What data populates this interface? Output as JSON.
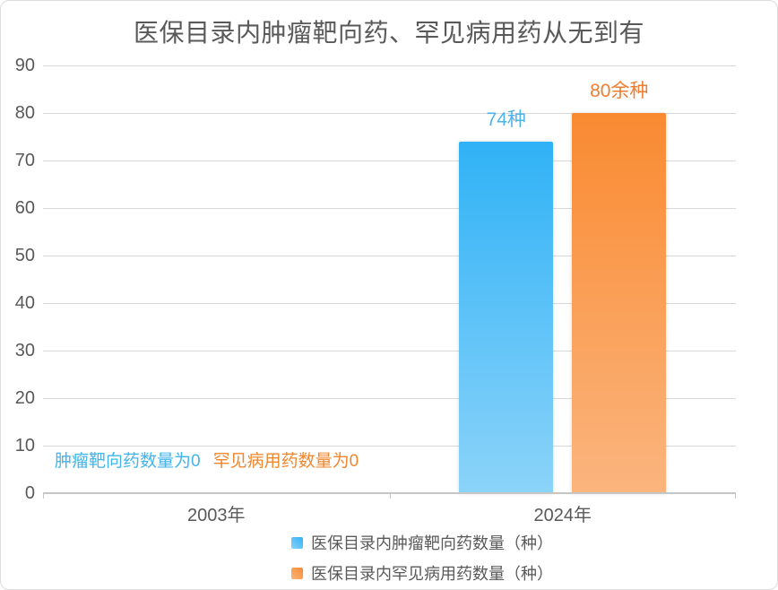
{
  "window": {
    "background": "#ffffff",
    "border_color": "#dcdcdc",
    "text_color": "#595959",
    "grid_color": "#d9d9d9",
    "axis_color": "#c6c6c6"
  },
  "chart_data": {
    "type": "bar",
    "title": "医保目录内肿瘤靶向药、罕见病用药从无到有",
    "categories": [
      "2003年",
      "2024年"
    ],
    "series": [
      {
        "name": "医保目录内肿瘤靶向药数量（种）",
        "values": [
          0,
          74
        ],
        "bar_labels": [
          "",
          "74种"
        ],
        "color_top": "#30b2f6",
        "color_bottom": "#8bd3f9",
        "label_color": "#4fb3ea"
      },
      {
        "name": "医保目录内罕见病用药数量（种）",
        "values": [
          0,
          80
        ],
        "bar_labels": [
          "",
          "80余种"
        ],
        "color_top": "#f98a31",
        "color_bottom": "#fbb57e",
        "label_color": "#ed7d31"
      }
    ],
    "annotations": [
      {
        "text": "肿瘤靶向药数量为0",
        "color": "#41b4ec",
        "category_index": 0
      },
      {
        "text": "罕见病用药数量为0",
        "color": "#f0872e",
        "category_index": 0
      }
    ],
    "xlabel": "",
    "ylabel": "",
    "ylim": [
      0,
      90
    ],
    "yticks": [
      0,
      10,
      20,
      30,
      40,
      50,
      60,
      70,
      80,
      90
    ],
    "grid": true,
    "legend_position": "bottom"
  }
}
